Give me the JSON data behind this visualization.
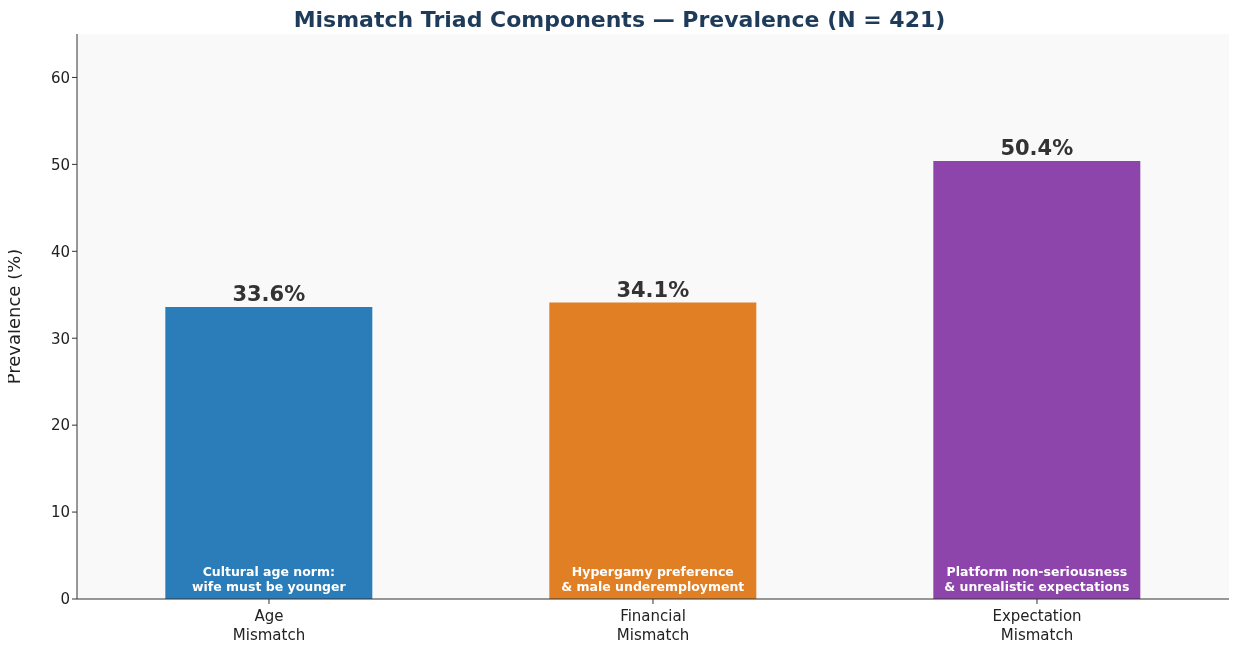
{
  "chart_data": {
    "type": "bar",
    "title": "Mismatch Triad Components — Prevalence (N = 421)",
    "ylabel": "Prevalence (%)",
    "categories": [
      "Age\nMismatch",
      "Financial\nMismatch",
      "Expectation\nMismatch"
    ],
    "values": [
      33.6,
      34.1,
      50.4
    ],
    "colors": [
      "#2a7db8",
      "#e07f24",
      "#8d44ab"
    ],
    "value_labels": [
      "33.6%",
      "34.1%",
      "50.4%"
    ],
    "annotations": [
      "Cultural age norm:\nwife must be younger",
      "Hypergamy preference\n& male underemployment",
      "Platform non-seriousness\n& unrealistic expectations"
    ],
    "ylim": [
      0,
      65
    ],
    "yticks": [
      0,
      10,
      20,
      30,
      40,
      50,
      60
    ],
    "grid": false,
    "legend": false
  }
}
